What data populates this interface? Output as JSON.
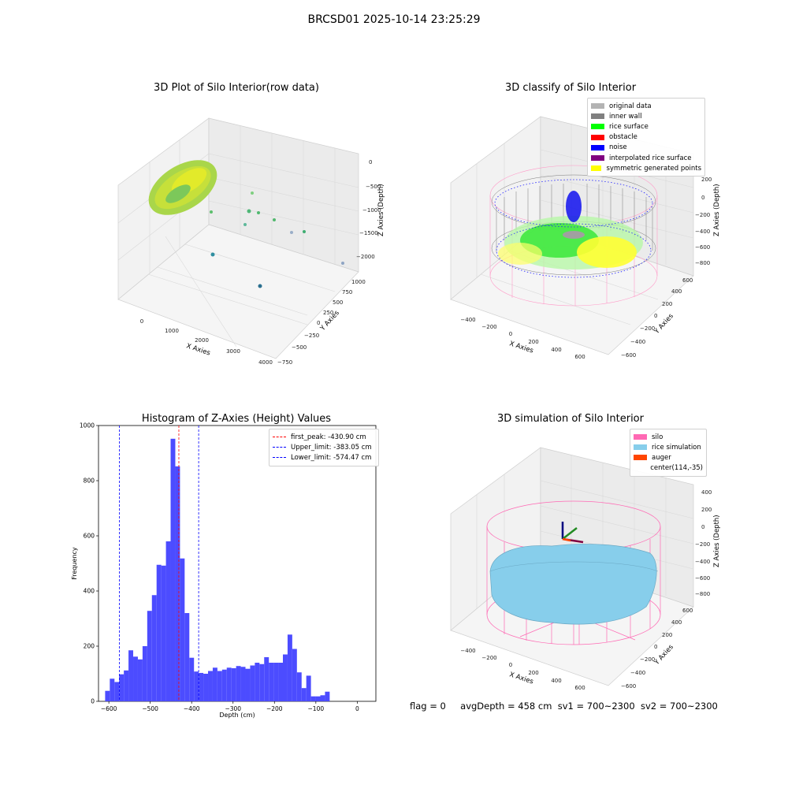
{
  "suptitle": "BRCSD01 2025-10-14 23:25:29",
  "panels": {
    "raw": {
      "title": "3D Plot of Silo Interior(row data)",
      "xlabel": "X Axies",
      "ylabel": "Y Axies",
      "zlabel": "Z Axies (Depth)",
      "xticks": [
        "0",
        "1000",
        "2000",
        "3000",
        "4000"
      ],
      "yticks": [
        "−750",
        "−500",
        "−250",
        "0",
        "250",
        "500",
        "750",
        "1000"
      ],
      "zticks": [
        "0",
        "−500",
        "−1000",
        "−1500",
        "−2000"
      ]
    },
    "classify": {
      "title": "3D classify of Silo Interior",
      "xlabel": "X Axies",
      "ylabel": "Y Axies",
      "zlabel": "Z Axies (Depth)",
      "xticks": [
        "−400",
        "−200",
        "0",
        "200",
        "400",
        "600"
      ],
      "yticks": [
        "−600",
        "−400",
        "−200",
        "0",
        "200",
        "400",
        "600"
      ],
      "zticks": [
        "200",
        "0",
        "−200",
        "−400",
        "−600",
        "−800"
      ],
      "legend": [
        {
          "label": "original data",
          "color": "#b3b3b3"
        },
        {
          "label": "inner wall",
          "color": "#808080"
        },
        {
          "label": "rice surface",
          "color": "#00ff00"
        },
        {
          "label": "obstacle",
          "color": "#ff0000"
        },
        {
          "label": "noise",
          "color": "#0000ff"
        },
        {
          "label": "interpolated rice surface",
          "color": "#800080"
        },
        {
          "label": "symmetric generated points",
          "color": "#ffff00"
        }
      ]
    },
    "simulation": {
      "title": "3D simulation of Silo Interior",
      "xlabel": "X Axies",
      "ylabel": "Y Axies",
      "zlabel": "Z Axies (Depth)",
      "xticks": [
        "−400",
        "−200",
        "0",
        "200",
        "400",
        "600"
      ],
      "yticks": [
        "−600",
        "−400",
        "−200",
        "0",
        "200",
        "400",
        "600"
      ],
      "zticks": [
        "400",
        "200",
        "0",
        "−200",
        "−400",
        "−600",
        "−800"
      ],
      "legend": [
        {
          "label": "silo",
          "color": "#ff69b4"
        },
        {
          "label": "rice simulation",
          "color": "#87ceeb"
        },
        {
          "label": "auger",
          "color": "#ff4500"
        },
        {
          "label": "center(114,-35)",
          "color": "none"
        }
      ]
    }
  },
  "status": {
    "flag": "flag = 0",
    "avg": "avgDepth = 458 cm",
    "sv1": "sv1 = 700~2300",
    "sv2": "sv2 = 700~2300"
  },
  "chart_data": {
    "type": "bar",
    "title": "Histogram of Z-Axies (Height) Values",
    "xlabel": "Depth (cm)",
    "ylabel": "Frequency",
    "xlim": [
      -625,
      45
    ],
    "ylim": [
      0,
      1000
    ],
    "xticks": [
      -600,
      -500,
      -400,
      -300,
      -200,
      -100,
      0
    ],
    "yticks": [
      0,
      200,
      400,
      600,
      800,
      1000
    ],
    "bin_start": -609,
    "bin_width": 11.3,
    "values": [
      38,
      82,
      70,
      98,
      112,
      185,
      162,
      152,
      200,
      328,
      385,
      495,
      492,
      580,
      952,
      852,
      518,
      320,
      158,
      108,
      103,
      100,
      110,
      122,
      110,
      115,
      122,
      120,
      128,
      125,
      118,
      130,
      140,
      135,
      160,
      140,
      140,
      140,
      170,
      242,
      190,
      105,
      48,
      93,
      18,
      18,
      22,
      35
    ],
    "bar_color": "#4c4cff",
    "lines": [
      {
        "label": "first_peak: -430.90 cm",
        "x": -430.9,
        "color": "#ff0000"
      },
      {
        "label": "Upper_limit: -383.05 cm",
        "x": -383.05,
        "color": "#0000ff"
      },
      {
        "label": "Lower_limit: -574.47 cm",
        "x": -574.47,
        "color": "#0000ff"
      }
    ],
    "legend_position": "top-right"
  }
}
